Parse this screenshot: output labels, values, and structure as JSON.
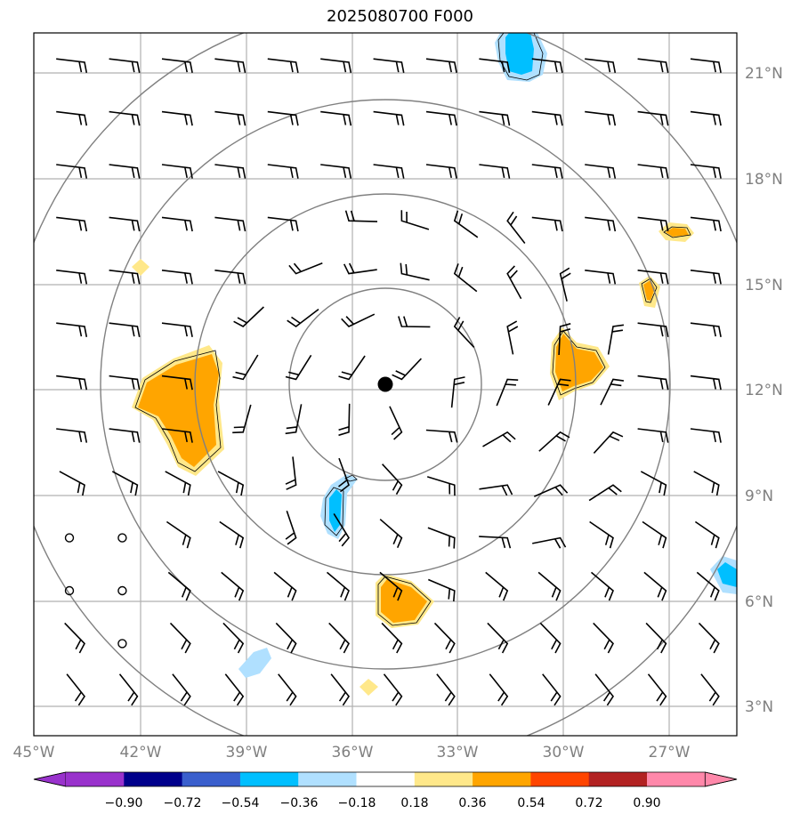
{
  "title": "2025080700 F000",
  "lon_labels": [
    "45°W",
    "42°W",
    "39°W",
    "36°W",
    "33°W",
    "30°W",
    "27°W"
  ],
  "lat_labels": [
    "21°N",
    "18°N",
    "15°N",
    "12°N",
    "9°N",
    "6°N",
    "3°N"
  ],
  "colorbar": {
    "tick_labels": [
      "−0.90",
      "−0.72",
      "−0.54",
      "−0.36",
      "−0.18",
      "0.18",
      "0.36",
      "0.54",
      "0.72",
      "0.90"
    ],
    "colors": [
      "#9932cc",
      "#00008b",
      "#3a5fcd",
      "#00bfff",
      "#b0e0ff",
      "#ffffff",
      "#ffe88a",
      "#ffa500",
      "#ff4500",
      "#b22222",
      "#ff88aa"
    ]
  },
  "field_colors": {
    "light_orange": "#ffe88a",
    "orange": "#ffa500",
    "light_blue": "#b0e0ff",
    "blue": "#00bfff",
    "range_rings": "#808080",
    "gridlines": "#b0b0b0"
  },
  "storm_center": {
    "lon": -35.0,
    "lat": 12.1
  }
}
